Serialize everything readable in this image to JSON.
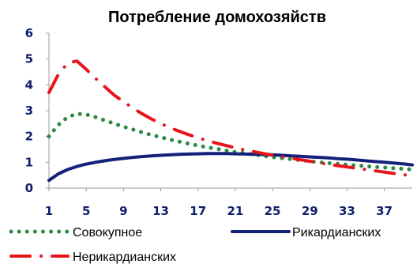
{
  "chart_data": {
    "type": "line",
    "title": "Потребление домохозяйств",
    "x_ticks": [
      "1",
      "5",
      "9",
      "13",
      "17",
      "21",
      "25",
      "29",
      "33",
      "37"
    ],
    "ylim": [
      0,
      6
    ],
    "y_ticks": [
      "0",
      "1",
      "2",
      "3",
      "4",
      "5",
      "6"
    ],
    "xlim": [
      1,
      40
    ],
    "series": [
      {
        "name": "Совокупное",
        "color": "#2e8b45",
        "style": "dotted",
        "x": [
          1,
          2,
          3,
          4,
          5,
          6,
          7,
          8,
          9,
          10,
          11,
          12,
          13,
          14,
          15,
          16,
          17,
          18,
          19,
          20,
          21,
          22,
          23,
          24,
          25,
          26,
          27,
          28,
          29,
          30,
          31,
          32,
          33,
          34,
          35,
          36,
          37,
          38,
          39,
          40
        ],
        "values": [
          2.0,
          2.45,
          2.75,
          2.88,
          2.85,
          2.75,
          2.62,
          2.5,
          2.38,
          2.27,
          2.16,
          2.06,
          1.97,
          1.88,
          1.8,
          1.72,
          1.65,
          1.58,
          1.52,
          1.46,
          1.4,
          1.35,
          1.3,
          1.25,
          1.2,
          1.16,
          1.12,
          1.08,
          1.04,
          1.0,
          0.97,
          0.94,
          0.91,
          0.88,
          0.85,
          0.82,
          0.8,
          0.77,
          0.75,
          0.72
        ]
      },
      {
        "name": "Рикардианских",
        "color": "#14207a",
        "style": "solid",
        "x": [
          1,
          2,
          3,
          4,
          5,
          6,
          7,
          8,
          9,
          10,
          11,
          12,
          13,
          14,
          15,
          16,
          17,
          18,
          19,
          20,
          21,
          22,
          23,
          24,
          25,
          26,
          27,
          28,
          29,
          30,
          31,
          32,
          33,
          34,
          35,
          36,
          37,
          38,
          39,
          40
        ],
        "values": [
          0.3,
          0.55,
          0.72,
          0.84,
          0.93,
          1.0,
          1.06,
          1.11,
          1.15,
          1.19,
          1.22,
          1.25,
          1.27,
          1.29,
          1.31,
          1.32,
          1.33,
          1.34,
          1.34,
          1.34,
          1.33,
          1.32,
          1.31,
          1.3,
          1.29,
          1.27,
          1.25,
          1.23,
          1.21,
          1.19,
          1.17,
          1.14,
          1.12,
          1.09,
          1.06,
          1.03,
          1.0,
          0.97,
          0.94,
          0.9
        ]
      },
      {
        "name": "Нерикардианских",
        "color": "#e8141c",
        "style": "dashdot",
        "x": [
          1,
          2,
          3,
          4,
          5,
          6,
          7,
          8,
          9,
          10,
          11,
          12,
          13,
          14,
          15,
          16,
          17,
          18,
          19,
          20,
          21,
          22,
          23,
          24,
          25,
          26,
          27,
          28,
          29,
          30,
          31,
          32,
          33,
          34,
          35,
          36,
          37,
          38,
          39,
          40
        ],
        "values": [
          3.7,
          4.4,
          4.85,
          4.92,
          4.6,
          4.25,
          3.92,
          3.6,
          3.35,
          3.1,
          2.88,
          2.68,
          2.5,
          2.34,
          2.2,
          2.07,
          1.95,
          1.84,
          1.74,
          1.65,
          1.56,
          1.48,
          1.41,
          1.34,
          1.28,
          1.22,
          1.16,
          1.1,
          1.04,
          0.98,
          0.92,
          0.87,
          0.82,
          0.77,
          0.72,
          0.67,
          0.62,
          0.57,
          0.52,
          0.48
        ]
      }
    ]
  }
}
